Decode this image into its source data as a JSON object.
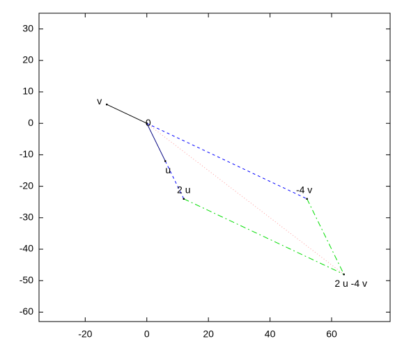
{
  "chart_data": {
    "type": "vector",
    "xlim": [
      -35,
      79
    ],
    "ylim": [
      -63,
      35
    ],
    "xticks": [
      -20,
      0,
      20,
      40,
      60
    ],
    "yticks": [
      30,
      20,
      10,
      0,
      -10,
      -20,
      -30,
      -40,
      -50,
      -60
    ],
    "grid": false,
    "points": [
      {
        "label": "0",
        "x": 0,
        "y": 0
      },
      {
        "label": "v",
        "x": -13,
        "y": 6
      },
      {
        "label": "u",
        "x": 6,
        "y": -12
      },
      {
        "label": "2 u",
        "x": 12,
        "y": -24
      },
      {
        "label": "-4 v",
        "x": 52,
        "y": -24
      },
      {
        "label": "2 u -4 v",
        "x": 64,
        "y": -48
      }
    ],
    "segments": [
      {
        "color": "#000000",
        "dash": "solid",
        "x": [
          0,
          -13
        ],
        "y": [
          0,
          6
        ]
      },
      {
        "color": "#000080",
        "dash": "solid",
        "x": [
          0,
          6
        ],
        "y": [
          0,
          -12
        ]
      },
      {
        "color": "#0000ff",
        "dash": "dashed",
        "x": [
          0,
          52
        ],
        "y": [
          0,
          -24
        ]
      },
      {
        "color": "#0000ff",
        "dash": "dashed",
        "x": [
          6,
          12
        ],
        "y": [
          -12,
          -24
        ]
      },
      {
        "color": "#00dd00",
        "dash": "dash-dot",
        "x": [
          12,
          64
        ],
        "y": [
          -24,
          -48
        ]
      },
      {
        "color": "#00dd00",
        "dash": "dash-dot",
        "x": [
          52,
          64
        ],
        "y": [
          -24,
          -48
        ]
      },
      {
        "color": "#ff9999",
        "dash": "dotted",
        "x": [
          0,
          64
        ],
        "y": [
          0,
          -48
        ]
      }
    ]
  }
}
